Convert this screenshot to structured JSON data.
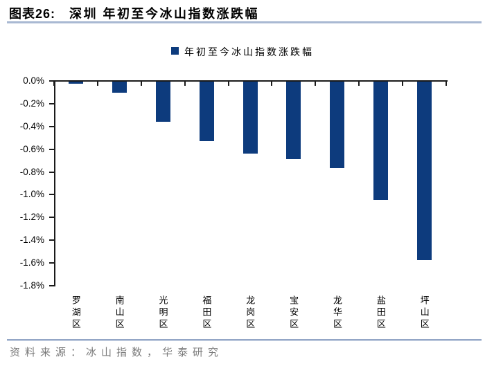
{
  "header": {
    "figure_label": "图表26:",
    "title": "深圳 年初至今冰山指数涨跌幅"
  },
  "legend": {
    "label": "年初至今冰山指数涨跌幅"
  },
  "chart_data": {
    "type": "bar",
    "title": "深圳 年初至今冰山指数涨跌幅",
    "series_name": "年初至今冰山指数涨跌幅",
    "categories": [
      "罗湖区",
      "南山区",
      "光明区",
      "福田区",
      "龙岗区",
      "宝安区",
      "龙华区",
      "盐田区",
      "坪山区"
    ],
    "values": [
      -0.02,
      -0.1,
      -0.35,
      -0.52,
      -0.63,
      -0.68,
      -0.76,
      -1.04,
      -1.57
    ],
    "unit": "%",
    "ylim": [
      -1.8,
      0.0
    ],
    "ytick_labels": [
      "0.0%",
      "-0.2%",
      "-0.4%",
      "-0.6%",
      "-0.8%",
      "-1.0%",
      "-1.2%",
      "-1.4%",
      "-1.6%",
      "-1.8%"
    ],
    "xlabel": "",
    "ylabel": "",
    "grid": false,
    "legend_position": "top",
    "bar_color": "#0d3b7d",
    "axis_color": "#1a1a1a"
  },
  "footer": {
    "source": "资料来源：冰山指数，华泰研究"
  },
  "colors": {
    "rule_accent": "#7e95bb",
    "source_text": "#7b7b7b"
  }
}
